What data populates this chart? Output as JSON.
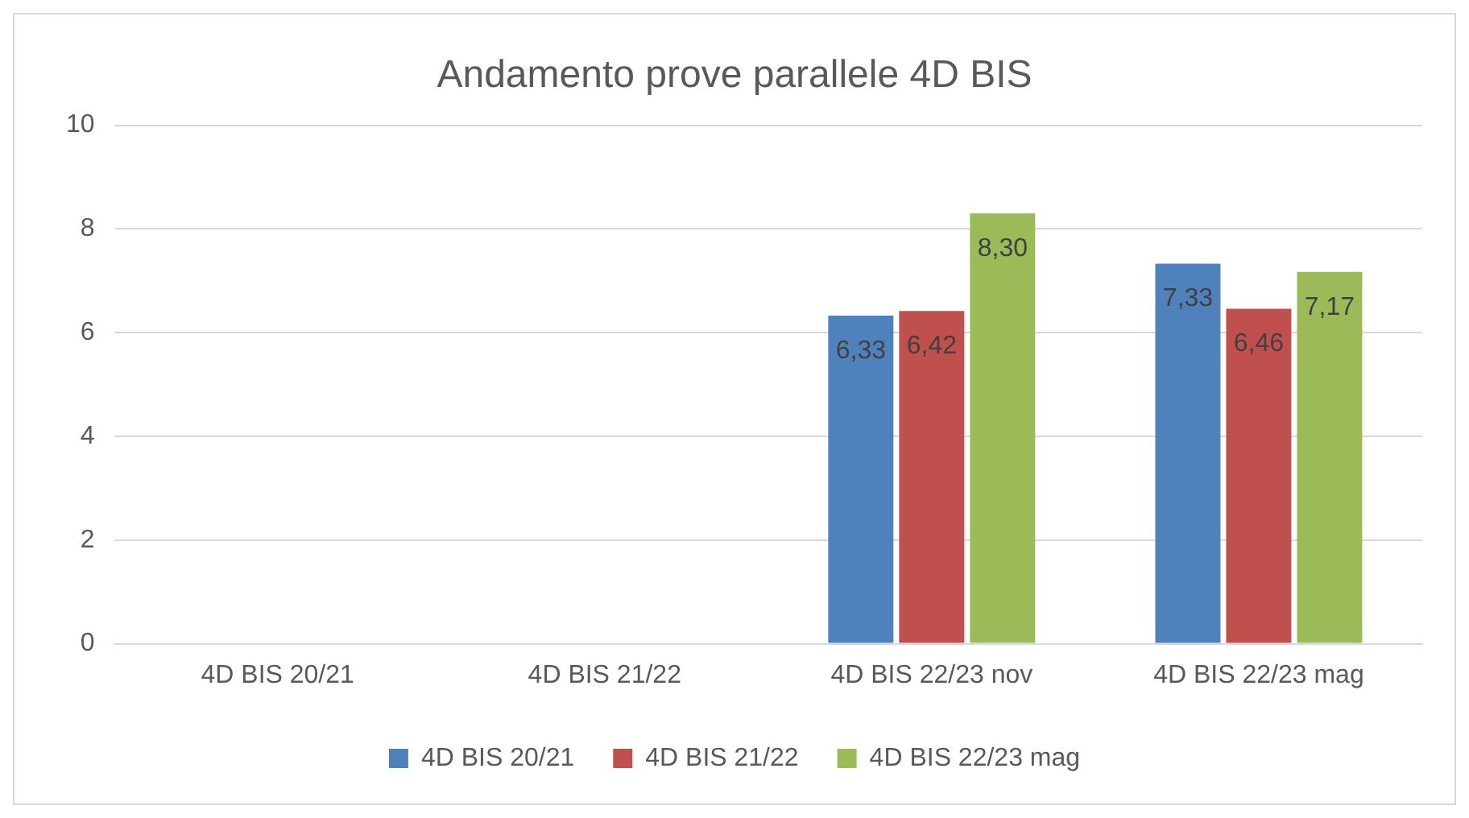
{
  "chart_data": {
    "type": "bar",
    "title": "Andamento prove parallele 4D BIS",
    "categories": [
      "4D BIS 20/21",
      "4D BIS 21/22",
      "4D BIS 22/23 nov",
      "4D BIS 22/23 mag"
    ],
    "series": [
      {
        "name": "4D BIS 20/21",
        "color": "#4f81bd",
        "values": [
          null,
          null,
          6.33,
          7.33
        ],
        "value_labels": [
          null,
          null,
          "6,33",
          "7,33"
        ]
      },
      {
        "name": "4D BIS 21/22",
        "color": "#c0504d",
        "values": [
          null,
          null,
          6.42,
          6.46
        ],
        "value_labels": [
          null,
          null,
          "6,42",
          "6,46"
        ]
      },
      {
        "name": "4D BIS 22/23 mag",
        "color": "#9bbb59",
        "values": [
          null,
          null,
          8.3,
          7.17
        ],
        "value_labels": [
          null,
          null,
          "8,30",
          "7,17"
        ]
      }
    ],
    "ylim": [
      0,
      10
    ],
    "yticks": [
      0,
      2,
      4,
      6,
      8,
      10
    ],
    "grid": "y",
    "legend": "bottom"
  }
}
